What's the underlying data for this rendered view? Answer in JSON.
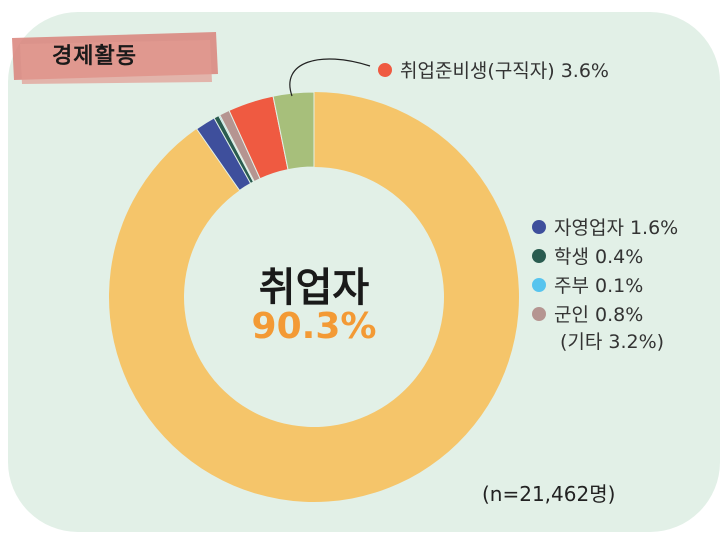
{
  "section_tag": "경제활동",
  "chart_data": {
    "type": "pie",
    "variant": "donut",
    "center_title": "취업자",
    "center_value": "90.3%",
    "slices": [
      {
        "label": "취업자",
        "value": 90.3,
        "color": "#f5c56a",
        "legend_text": ""
      },
      {
        "label": "자영업자",
        "value": 1.6,
        "color": "#3e4f9c",
        "legend_text": "자영업자 1.6%"
      },
      {
        "label": "학생",
        "value": 0.4,
        "color": "#2a5c50",
        "legend_text": "학생 0.4%"
      },
      {
        "label": "주부",
        "value": 0.1,
        "color": "#57c4ee",
        "legend_text": "주부 0.1%"
      },
      {
        "label": "군인",
        "value": 0.8,
        "color": "#b59591",
        "legend_text": "군인 0.8%"
      },
      {
        "label": "취업준비생(구직자)",
        "value": 3.6,
        "color": "#ef5a41",
        "legend_text": "취업준비생(구직자) 3.6%"
      },
      {
        "label": "기타",
        "value": 3.2,
        "color": "#a7bf7b",
        "legend_text": ""
      }
    ],
    "other_note": "(기타 3.2%)",
    "sample_size": "(n=21,462명)"
  }
}
